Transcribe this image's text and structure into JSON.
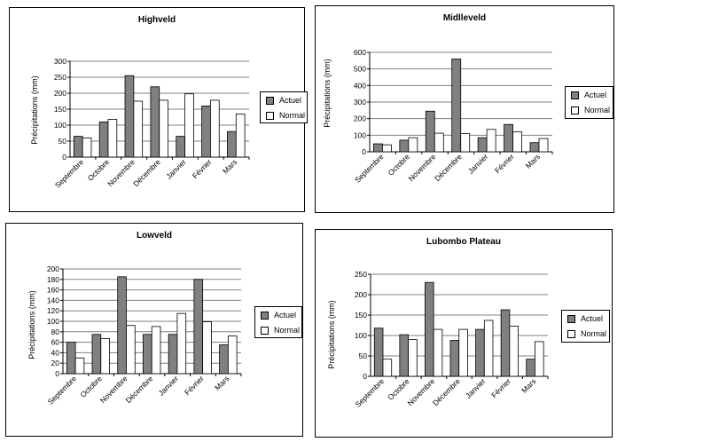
{
  "legend": {
    "actuel": "Actuel",
    "normal": "Normal"
  },
  "colors": {
    "actuel": "#808080",
    "normal": "#ffffff",
    "grid": "#808080",
    "axis": "#000000"
  },
  "chart_data": [
    {
      "type": "bar",
      "title": "Highveld",
      "ylabel": "Précipitations (mm)",
      "xlabel": "",
      "categories": [
        "Septembre",
        "Octobre",
        "Novembre",
        "Décembre",
        "Janvier",
        "Février",
        "Mars"
      ],
      "series": [
        {
          "name": "Actuel",
          "values": [
            65,
            110,
            255,
            220,
            65,
            160,
            80
          ]
        },
        {
          "name": "Normal",
          "values": [
            60,
            118,
            175,
            178,
            198,
            178,
            135
          ]
        }
      ],
      "ylim": [
        0,
        300
      ],
      "yticks": [
        0,
        50,
        100,
        150,
        200,
        250,
        300
      ],
      "grid": true,
      "legend_position": "right"
    },
    {
      "type": "bar",
      "title": "Midlleveld",
      "ylabel": "Précipitations (mm)",
      "xlabel": "",
      "categories": [
        "Septembre",
        "Octobre",
        "Novembre",
        "Décembre",
        "Janvier",
        "Février",
        "Mars"
      ],
      "series": [
        {
          "name": "Actuel",
          "values": [
            48,
            70,
            245,
            560,
            85,
            165,
            55
          ]
        },
        {
          "name": "Normal",
          "values": [
            42,
            85,
            112,
            110,
            135,
            120,
            80
          ]
        }
      ],
      "ylim": [
        0,
        600
      ],
      "yticks": [
        0,
        100,
        200,
        300,
        400,
        500,
        600
      ],
      "grid": true,
      "legend_position": "right"
    },
    {
      "type": "bar",
      "title": "Lowveld",
      "ylabel": "Précipitations (mm)",
      "xlabel": "",
      "categories": [
        "Septembre",
        "Octobre",
        "Novembre",
        "Décembre",
        "Janvier",
        "Février",
        "Mars"
      ],
      "series": [
        {
          "name": "Actuel",
          "values": [
            60,
            75,
            185,
            75,
            75,
            180,
            55
          ]
        },
        {
          "name": "Normal",
          "values": [
            30,
            67,
            92,
            90,
            115,
            99,
            72
          ]
        }
      ],
      "ylim": [
        0,
        200
      ],
      "yticks": [
        0,
        20,
        40,
        60,
        80,
        100,
        120,
        140,
        160,
        180,
        200
      ],
      "grid": true,
      "legend_position": "right"
    },
    {
      "type": "bar",
      "title": "Lubombo Plateau",
      "ylabel": "Précipitations (mm)",
      "xlabel": "",
      "categories": [
        "Septembre",
        "Octobre",
        "Novembre",
        "Décembre",
        "Janvier",
        "Février",
        "Mars"
      ],
      "series": [
        {
          "name": "Actuel",
          "values": [
            118,
            102,
            230,
            88,
            115,
            163,
            42
          ]
        },
        {
          "name": "Normal",
          "values": [
            42,
            90,
            115,
            115,
            137,
            123,
            85
          ]
        }
      ],
      "ylim": [
        0,
        250
      ],
      "yticks": [
        0,
        50,
        100,
        150,
        200,
        250
      ],
      "grid": true,
      "legend_position": "right"
    }
  ]
}
